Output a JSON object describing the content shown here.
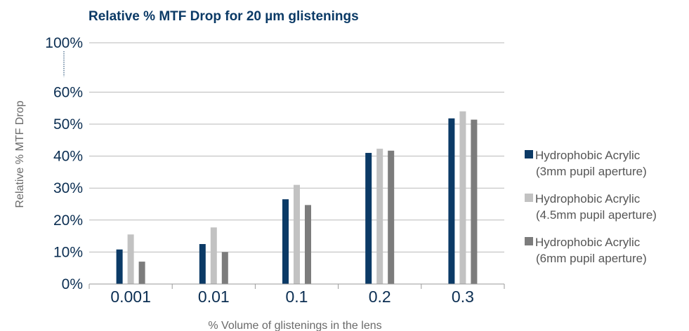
{
  "chart_data": {
    "type": "bar",
    "title": "Relative % MTF Drop for 20 µm glistenings",
    "xlabel": "% Volume of glistenings in the lens",
    "ylabel": "Relative % MTF Drop",
    "categories": [
      "0.001",
      "0.01",
      "0.1",
      "0.2",
      "0.3"
    ],
    "ytick_labels": [
      "0%",
      "10%",
      "20%",
      "30%",
      "40%",
      "50%",
      "60%",
      "100%"
    ],
    "ytick_values": [
      0,
      10,
      20,
      30,
      40,
      50,
      60,
      100
    ],
    "axis_break": "between 60% and 100%",
    "grid": true,
    "legend_position": "right",
    "series": [
      {
        "name": "Hydrophobic Acrylic",
        "name_line2": "(3mm pupil aperture)",
        "color": "#0b3a66",
        "values": [
          10.8,
          12.5,
          26.5,
          41.0,
          51.8
        ]
      },
      {
        "name": "Hydrophobic Acrylic",
        "name_line2": "(4.5mm pupil aperture)",
        "color": "#c2c2c2",
        "values": [
          15.5,
          17.7,
          31.0,
          42.3,
          54.0
        ]
      },
      {
        "name": "Hydrophobic Acrylic",
        "name_line2": "(6mm pupil aperture)",
        "color": "#7c7c7c",
        "values": [
          7.0,
          10.0,
          24.7,
          41.7,
          51.4
        ]
      }
    ]
  }
}
